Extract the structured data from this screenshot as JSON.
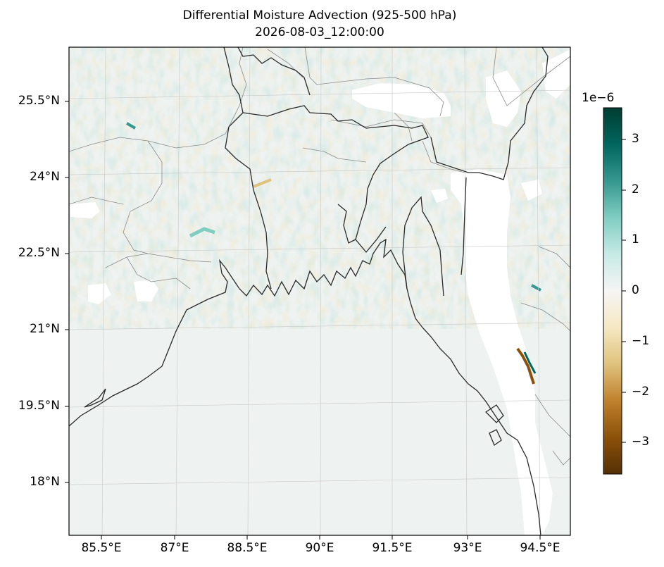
{
  "map": {
    "title_line1": "Differential Moisture Advection (925-500 hPa)",
    "title_line2": "2026-08-03_12:00:00",
    "latitude_labels": [
      "25.5°N",
      "24°N",
      "22.5°N",
      "21°N",
      "19.5°N",
      "18°N"
    ],
    "longitude_labels": [
      "85.5°E",
      "87°E",
      "88.5°E",
      "90°E",
      "91.5°E",
      "93°E",
      "94.5°E"
    ],
    "region_labels": []
  },
  "colorbar": {
    "exponent_label": "1e−6",
    "tick_labels": [
      "3",
      "2",
      "1",
      "0",
      "−1",
      "−2",
      "−3"
    ],
    "tick_values": [
      3,
      2,
      1,
      0,
      -1,
      -2,
      -3
    ],
    "range": [
      -3.6,
      3.6
    ],
    "colormap": "BrBG",
    "color_stops": [
      "#543005",
      "#8c510a",
      "#bf812d",
      "#dfc27d",
      "#f6e8c3",
      "#f5f5f5",
      "#c7eae5",
      "#80cdc1",
      "#35978f",
      "#01665e",
      "#003c30"
    ]
  },
  "legend": []
}
